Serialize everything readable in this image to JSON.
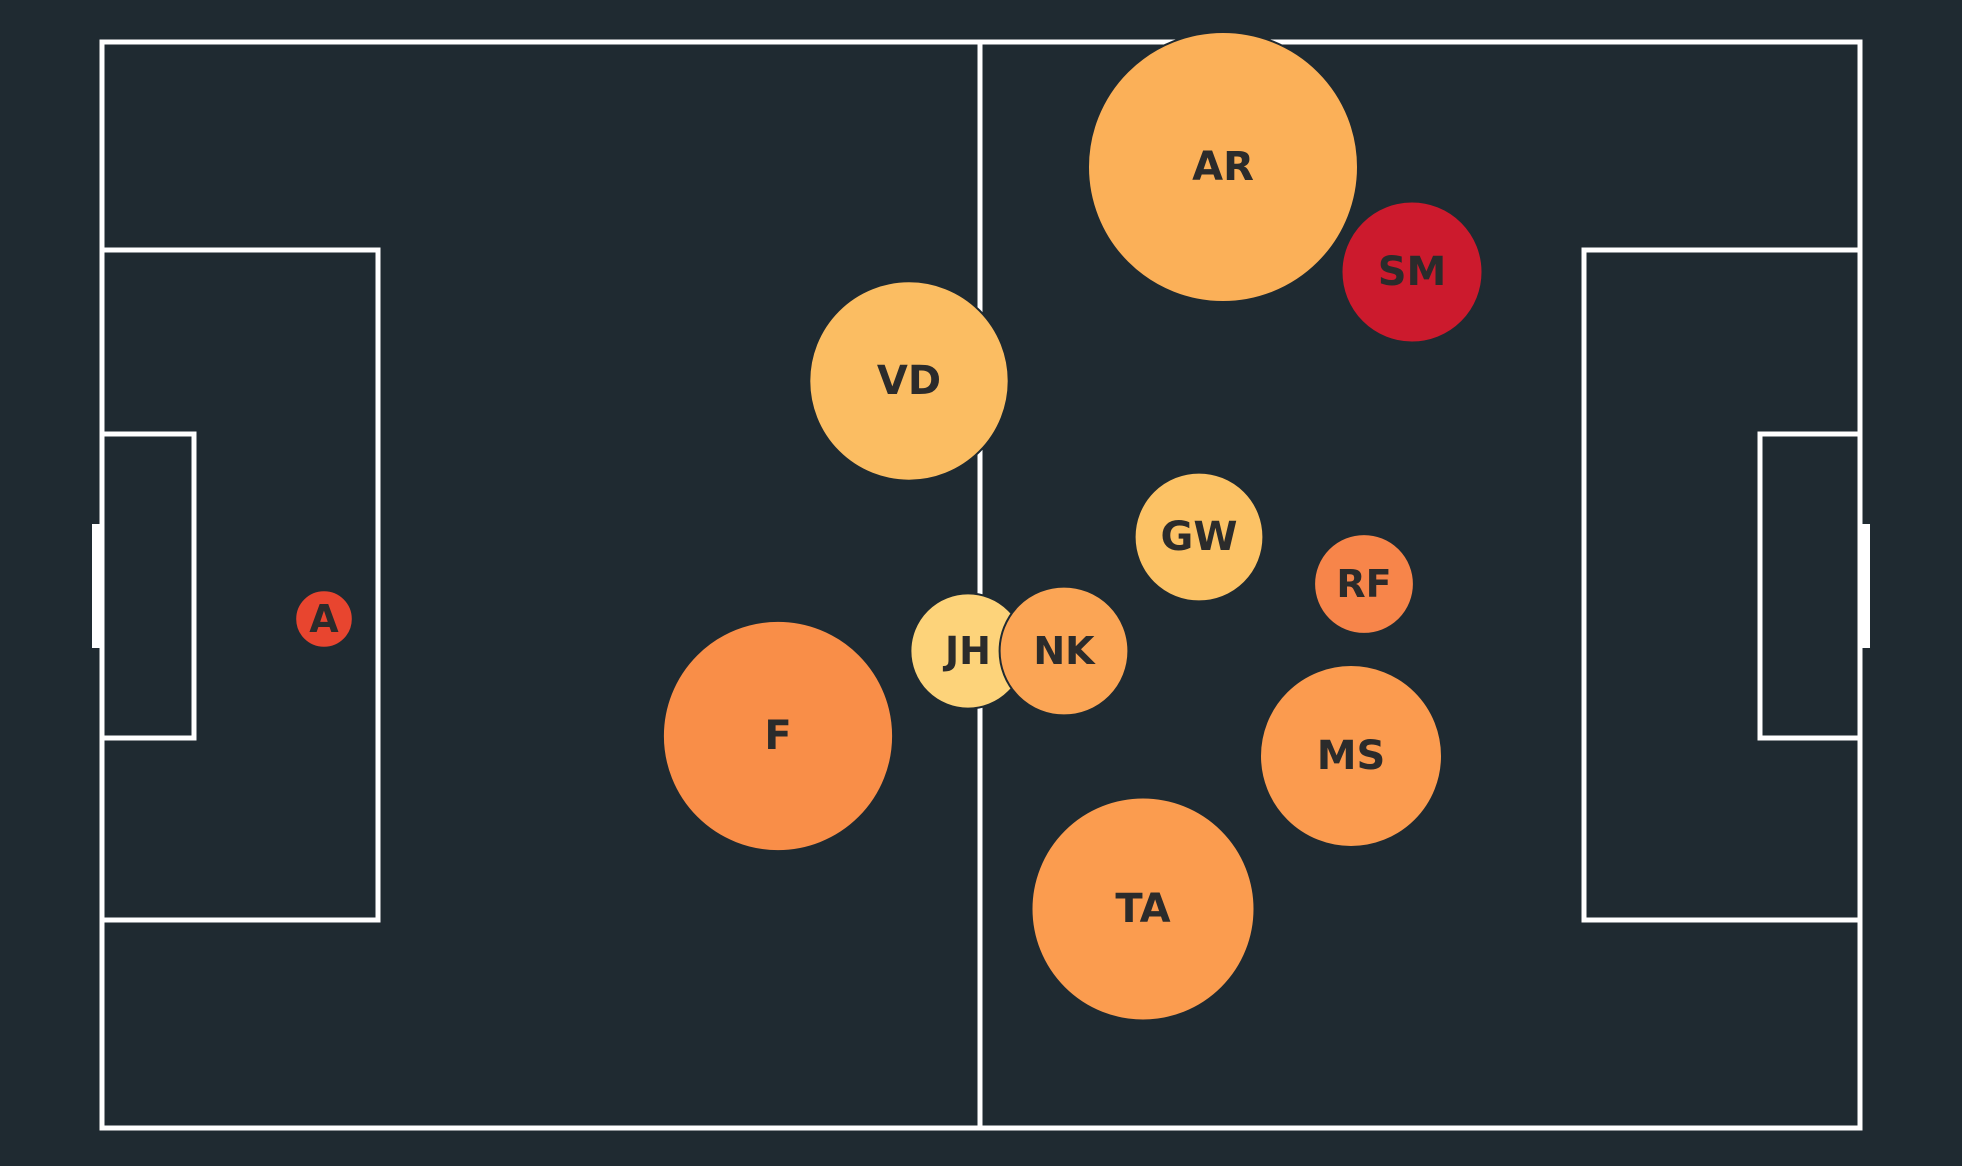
{
  "colors": {
    "background": "#1f2a31",
    "lines": "#ffffff",
    "label": "#2b2b2b"
  },
  "players": [
    {
      "label": "A",
      "value": 1,
      "color": "#e8452f"
    },
    {
      "label": "F",
      "value": 16,
      "color": "#f98e48"
    },
    {
      "label": "VD",
      "value": 12,
      "color": "#fbbd62"
    },
    {
      "label": "JH",
      "value": 4,
      "color": "#fdd37a"
    },
    {
      "label": "NK",
      "value": 5,
      "color": "#fba555"
    },
    {
      "label": "AR",
      "value": 22,
      "color": "#fbb058"
    },
    {
      "label": "SM",
      "value": 6,
      "color": "#cc1a2d"
    },
    {
      "label": "GW",
      "value": 5,
      "color": "#fcc265"
    },
    {
      "label": "RF",
      "value": 3,
      "color": "#f7854a"
    },
    {
      "label": "MS",
      "value": 10,
      "color": "#fb9b4f"
    },
    {
      "label": "TA",
      "value": 15,
      "color": "#fb9c4f"
    }
  ]
}
